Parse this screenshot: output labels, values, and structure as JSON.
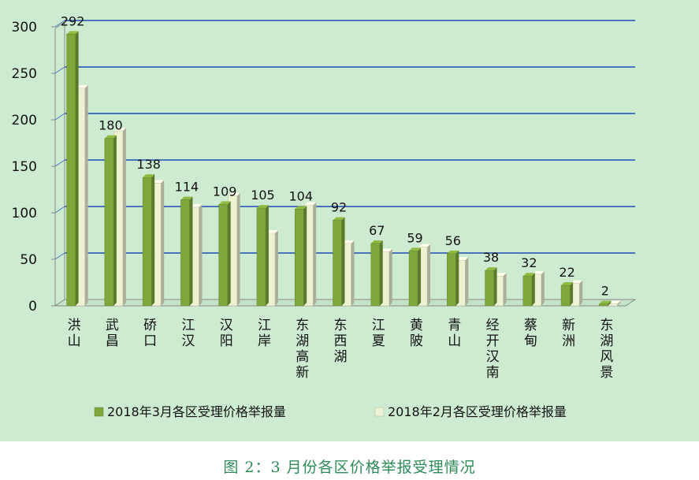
{
  "caption": "图 2：3 月份各区价格举报受理情况",
  "chart_data": {
    "type": "bar",
    "categories": [
      "洪山",
      "武昌",
      "硚口",
      "江汉",
      "汉阳",
      "江岸",
      "东湖高新",
      "东西湖",
      "江夏",
      "黄陂",
      "青山",
      "经开汉南",
      "蔡甸",
      "新洲",
      "东湖风景"
    ],
    "series": [
      {
        "name": "2018年3月各区受理价格举报量",
        "values": [
          292,
          180,
          138,
          114,
          109,
          105,
          104,
          92,
          67,
          59,
          56,
          38,
          32,
          22,
          2
        ],
        "color": "#7fa83c",
        "data_labels": true
      },
      {
        "name": "2018年2月各区受理价格举报量",
        "values": [
          234,
          188,
          132,
          106,
          118,
          78,
          108,
          67,
          58,
          63,
          49,
          32,
          34,
          24,
          2
        ],
        "color": "#edf2d3",
        "data_labels": false
      }
    ],
    "ylim": [
      0,
      300
    ],
    "yticks": [
      0,
      50,
      100,
      150,
      200,
      250,
      300
    ],
    "grid": true,
    "legend_position": "bottom",
    "gridline_color": "#4a73b8"
  }
}
